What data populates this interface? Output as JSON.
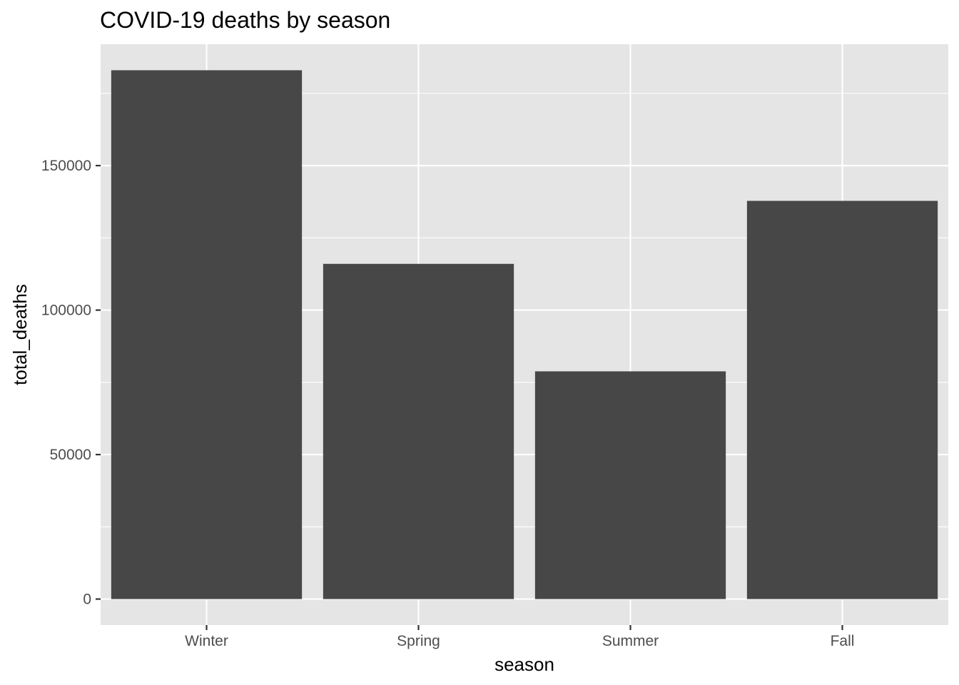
{
  "chart_data": {
    "type": "bar",
    "title": "COVID-19 deaths by season",
    "xlabel": "season",
    "ylabel": "total_deaths",
    "categories": [
      "Winter",
      "Spring",
      "Summer",
      "Fall"
    ],
    "values": [
      183000,
      116000,
      78800,
      137800
    ],
    "ylim": [
      -9000,
      192000
    ],
    "yticks": [
      0,
      50000,
      100000,
      150000
    ],
    "ytick_labels": [
      "0",
      "50000",
      "100000",
      "150000"
    ],
    "grid": true,
    "legend": "none",
    "colors": {
      "bar": "#474747",
      "panel": "#e5e5e5",
      "grid_major": "#ffffff",
      "tick_text": "#4d4d4d",
      "tick_mark": "#333333",
      "title_text": "#000000"
    }
  }
}
